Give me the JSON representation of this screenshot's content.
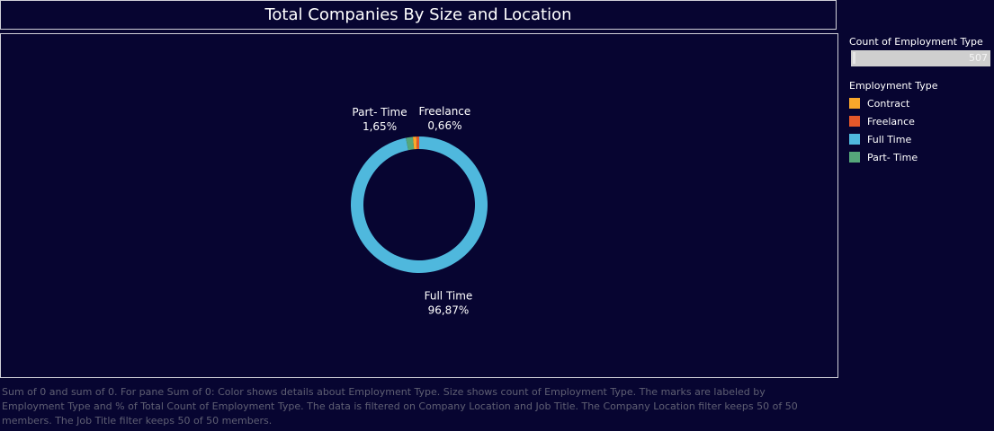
{
  "title": "Total Companies By Size and Location",
  "legend": {
    "size_title": "Count of Employment Type",
    "size_max": "507",
    "color_title": "Employment Type",
    "items": [
      {
        "label": "Contract",
        "color": "#f9a72b"
      },
      {
        "label": "Freelance",
        "color": "#e4582a"
      },
      {
        "label": "Full Time",
        "color": "#4fb8dd"
      },
      {
        "label": "Part- Time",
        "color": "#55a77a"
      }
    ]
  },
  "caption": "Sum of 0 and sum of 0.  For pane Sum of 0:  Color shows details about Employment Type.  Size shows count of Employment Type.  The marks are labeled by Employment Type and % of Total Count of Employment Type. The data is filtered on Company Location and Job Title. The Company Location filter keeps 50 of 50 members. The Job Title filter keeps 50 of 50 members.",
  "chart_data": {
    "type": "pie",
    "donut": true,
    "title": "Total Companies By Size and Location",
    "series": [
      {
        "name": "Full Time",
        "percent": 96.87,
        "label": "Full Time",
        "pct_label": "96,87%",
        "color": "#4fb8dd"
      },
      {
        "name": "Part- Time",
        "percent": 1.65,
        "label": "Part- Time",
        "pct_label": "1,65%",
        "color": "#55a77a"
      },
      {
        "name": "Contract",
        "percent": 0.82,
        "label": "",
        "pct_label": "",
        "color": "#f9a72b"
      },
      {
        "name": "Freelance",
        "percent": 0.66,
        "label": "Freelance",
        "pct_label": "0,66%",
        "color": "#e4582a"
      }
    ]
  }
}
